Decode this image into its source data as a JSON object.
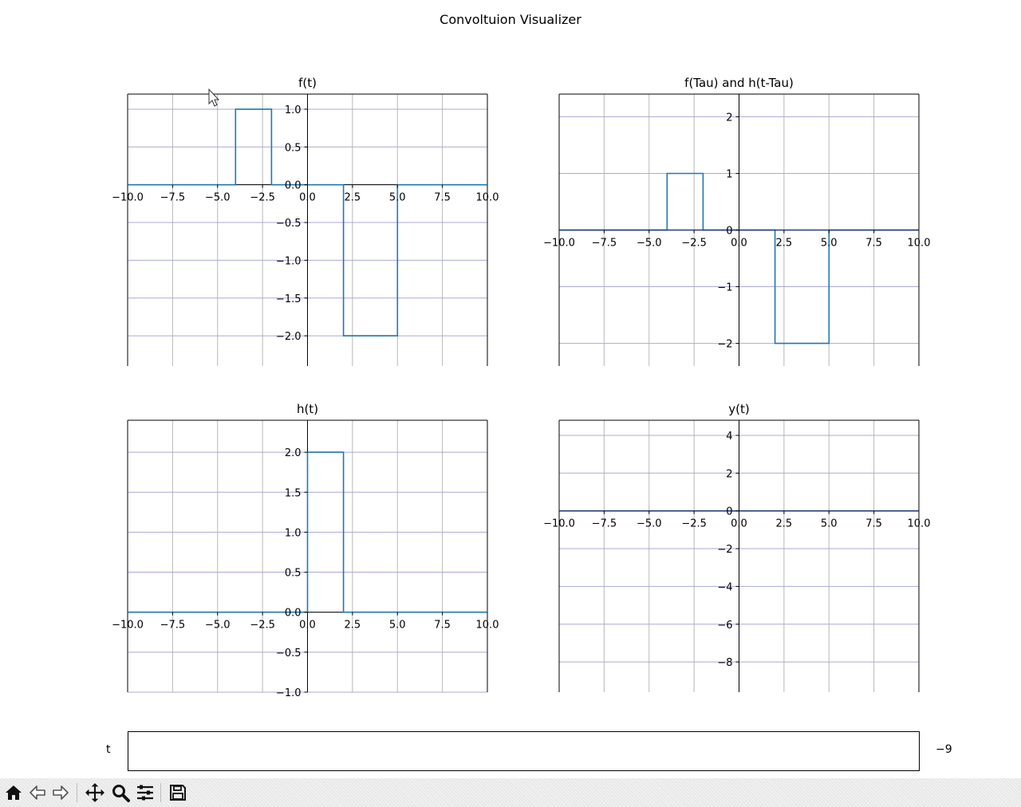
{
  "figure": {
    "title": "Convoltuion Visualizer"
  },
  "chart_data": [
    {
      "type": "line",
      "title": "f(t)",
      "xlim": [
        -10,
        10
      ],
      "ylim": [
        -2.4,
        1.2
      ],
      "xticks": [
        -10,
        -7.5,
        -5,
        -2.5,
        0,
        2.5,
        5,
        7.5,
        10
      ],
      "xtick_labels": [
        "−10.0",
        "−7.5",
        "−5.0",
        "−2.5",
        "0.0",
        "2.5",
        "5.0",
        "7.5",
        "10.0"
      ],
      "yticks": [
        -2,
        -1.5,
        -1,
        -0.5,
        0,
        0.5,
        1
      ],
      "ytick_labels": [
        "−2.0",
        "−1.5",
        "−1.0",
        "−0.5",
        "0.0",
        "0.5",
        "1.0"
      ],
      "grid": true,
      "series": [
        {
          "x": [
            -10,
            -4,
            -4,
            -2,
            -2,
            2,
            2,
            5,
            5,
            10
          ],
          "y": [
            0,
            0,
            1,
            1,
            0,
            0,
            -2,
            -2,
            0,
            0
          ],
          "color": "#1f77b4"
        }
      ]
    },
    {
      "type": "line",
      "title": "f(Tau) and h(t-Tau)",
      "xlim": [
        -10,
        10
      ],
      "ylim": [
        -2.4,
        2.4
      ],
      "xticks": [
        -10,
        -7.5,
        -5,
        -2.5,
        0,
        2.5,
        5,
        7.5,
        10
      ],
      "xtick_labels": [
        "−10.0",
        "−7.5",
        "−5.0",
        "−2.5",
        "0.0",
        "2.5",
        "5.0",
        "7.5",
        "10.0"
      ],
      "yticks": [
        -2,
        -1,
        0,
        1,
        2
      ],
      "ytick_labels": [
        "−2",
        "−1",
        "0",
        "1",
        "2"
      ],
      "grid": true,
      "series": [
        {
          "x": [
            -10,
            -4,
            -4,
            -2,
            -2,
            2,
            2,
            5,
            5,
            10
          ],
          "y": [
            0,
            0,
            1,
            1,
            0,
            0,
            -2,
            -2,
            0,
            0
          ],
          "color": "#1f77b4"
        },
        {
          "x": [
            -10,
            10
          ],
          "y": [
            0,
            0
          ],
          "color": "#1f3b78"
        }
      ]
    },
    {
      "type": "line",
      "title": "h(t)",
      "xlim": [
        -10,
        10
      ],
      "ylim": [
        -1,
        2.4
      ],
      "xticks": [
        -10,
        -7.5,
        -5,
        -2.5,
        0,
        2.5,
        5,
        7.5,
        10
      ],
      "xtick_labels": [
        "−10.0",
        "−7.5",
        "−5.0",
        "−2.5",
        "0.0",
        "2.5",
        "5.0",
        "7.5",
        "10.0"
      ],
      "yticks": [
        -1,
        -0.5,
        0,
        0.5,
        1,
        1.5,
        2
      ],
      "ytick_labels": [
        "−1.0",
        "−0.5",
        "0.0",
        "0.5",
        "1.0",
        "1.5",
        "2.0"
      ],
      "grid": true,
      "series": [
        {
          "x": [
            -10,
            0,
            0,
            2,
            2,
            10
          ],
          "y": [
            0,
            0,
            2,
            2,
            0,
            0
          ],
          "color": "#1f77b4"
        }
      ]
    },
    {
      "type": "line",
      "title": "y(t)",
      "xlim": [
        -10,
        10
      ],
      "ylim": [
        -9.6,
        4.8
      ],
      "xticks": [
        -10,
        -7.5,
        -5,
        -2.5,
        0,
        2.5,
        5,
        7.5,
        10
      ],
      "xtick_labels": [
        "−10.0",
        "−7.5",
        "−5.0",
        "−2.5",
        "0.0",
        "2.5",
        "5.0",
        "7.5",
        "10.0"
      ],
      "yticks": [
        -8,
        -6,
        -4,
        -2,
        0,
        2,
        4
      ],
      "ytick_labels": [
        "−8",
        "−6",
        "−4",
        "−2",
        "0",
        "2",
        "4"
      ],
      "grid": true,
      "series": [
        {
          "x": [
            -10,
            10
          ],
          "y": [
            0,
            0
          ],
          "color": "#1f3b78"
        }
      ]
    }
  ],
  "slider": {
    "label": "t",
    "value": "−9"
  },
  "toolbar": {
    "buttons": [
      "home-icon",
      "back-icon",
      "forward-icon",
      "pan-icon",
      "zoom-icon",
      "configure-subplots-icon",
      "save-icon"
    ]
  }
}
